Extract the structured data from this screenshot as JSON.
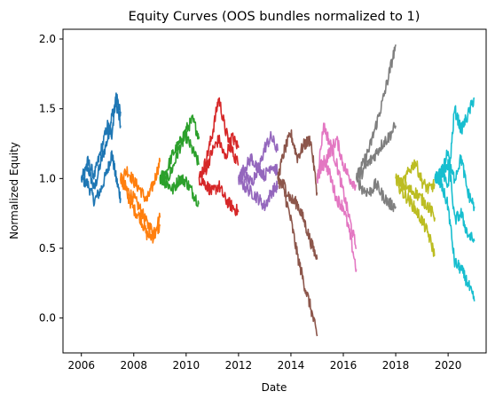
{
  "chart_data": {
    "type": "line",
    "title": "Equity Curves (OOS bundles normalized to 1)",
    "xlabel": "Date",
    "ylabel": "Normalized Equity",
    "xlim": [
      "2005-04-20",
      "2021-06-15"
    ],
    "ylim": [
      -0.25,
      2.07
    ],
    "x_ticks": [
      "2006",
      "2008",
      "2010",
      "2012",
      "2014",
      "2016",
      "2018",
      "2020"
    ],
    "y_ticks": [
      "0.0",
      "0.5",
      "1.0",
      "1.5",
      "2.0"
    ],
    "grid": false,
    "legend": "none",
    "series": [
      {
        "color": "#1f77b4",
        "curves": [
          {
            "x": [
              "2006-01-01",
              "2006-04-01",
              "2006-07-01",
              "2006-10-01",
              "2007-01-01",
              "2007-03-01",
              "2007-05-01",
              "2007-07-01"
            ],
            "y": [
              1.0,
              1.08,
              0.92,
              1.12,
              1.28,
              1.45,
              1.55,
              1.38
            ]
          },
          {
            "x": [
              "2006-01-01",
              "2006-04-01",
              "2006-07-01",
              "2006-10-01",
              "2007-01-01",
              "2007-03-01",
              "2007-05-01",
              "2007-07-01"
            ],
            "y": [
              1.0,
              0.96,
              0.84,
              0.92,
              1.06,
              1.18,
              1.0,
              0.86
            ]
          },
          {
            "x": [
              "2006-01-01",
              "2006-04-01",
              "2006-07-01",
              "2006-10-01",
              "2007-01-01",
              "2007-03-01",
              "2007-05-01",
              "2007-07-01"
            ],
            "y": [
              1.0,
              1.12,
              1.02,
              1.2,
              1.38,
              1.32,
              1.6,
              1.48
            ]
          }
        ]
      },
      {
        "color": "#ff7f0e",
        "curves": [
          {
            "x": [
              "2007-07-01",
              "2007-10-01",
              "2008-01-01",
              "2008-04-01",
              "2008-07-01",
              "2008-10-01",
              "2009-01-01"
            ],
            "y": [
              1.0,
              0.92,
              0.86,
              0.78,
              0.68,
              0.62,
              0.72
            ]
          },
          {
            "x": [
              "2007-07-01",
              "2007-10-01",
              "2008-01-01",
              "2008-04-01",
              "2008-07-01",
              "2008-10-01",
              "2009-01-01"
            ],
            "y": [
              1.0,
              1.06,
              0.98,
              0.92,
              0.84,
              0.96,
              1.12
            ]
          },
          {
            "x": [
              "2007-07-01",
              "2007-10-01",
              "2008-01-01",
              "2008-04-01",
              "2008-07-01",
              "2008-10-01",
              "2009-01-01"
            ],
            "y": [
              1.0,
              0.88,
              0.78,
              0.72,
              0.6,
              0.58,
              0.66
            ]
          }
        ]
      },
      {
        "color": "#2ca02c",
        "curves": [
          {
            "x": [
              "2009-01-01",
              "2009-04-01",
              "2009-07-01",
              "2009-10-01",
              "2010-01-01",
              "2010-04-01",
              "2010-07-01"
            ],
            "y": [
              1.0,
              0.98,
              1.08,
              1.22,
              1.3,
              1.2,
              1.1
            ]
          },
          {
            "x": [
              "2009-01-01",
              "2009-04-01",
              "2009-07-01",
              "2009-10-01",
              "2010-01-01",
              "2010-04-01",
              "2010-07-01"
            ],
            "y": [
              1.0,
              1.05,
              1.18,
              1.25,
              1.35,
              1.42,
              1.3
            ]
          },
          {
            "x": [
              "2009-01-01",
              "2009-04-01",
              "2009-07-01",
              "2009-10-01",
              "2010-01-01",
              "2010-04-01",
              "2010-07-01"
            ],
            "y": [
              1.0,
              0.97,
              0.92,
              1.0,
              0.98,
              0.9,
              0.82
            ]
          }
        ]
      },
      {
        "color": "#d62728",
        "curves": [
          {
            "x": [
              "2010-07-01",
              "2010-10-01",
              "2011-01-01",
              "2011-04-01",
              "2011-07-01",
              "2011-10-01",
              "2012-01-01"
            ],
            "y": [
              1.0,
              1.12,
              1.32,
              1.58,
              1.35,
              1.2,
              1.1
            ]
          },
          {
            "x": [
              "2010-07-01",
              "2010-10-01",
              "2011-01-01",
              "2011-04-01",
              "2011-07-01",
              "2011-10-01",
              "2012-01-01"
            ],
            "y": [
              1.0,
              0.96,
              0.9,
              0.95,
              0.85,
              0.8,
              0.76
            ]
          },
          {
            "x": [
              "2010-07-01",
              "2010-10-01",
              "2011-01-01",
              "2011-04-01",
              "2011-07-01",
              "2011-10-01",
              "2012-01-01"
            ],
            "y": [
              1.0,
              1.06,
              1.2,
              1.28,
              1.14,
              1.3,
              1.22
            ]
          }
        ]
      },
      {
        "color": "#9467bd",
        "curves": [
          {
            "x": [
              "2012-01-01",
              "2012-04-01",
              "2012-07-01",
              "2012-10-01",
              "2013-01-01",
              "2013-04-01",
              "2013-07-01"
            ],
            "y": [
              1.0,
              1.08,
              1.15,
              1.05,
              1.22,
              1.3,
              1.2
            ]
          },
          {
            "x": [
              "2012-01-01",
              "2012-04-01",
              "2012-07-01",
              "2012-10-01",
              "2013-01-01",
              "2013-04-01",
              "2013-07-01"
            ],
            "y": [
              1.0,
              0.94,
              0.9,
              0.86,
              0.8,
              0.9,
              0.95
            ]
          },
          {
            "x": [
              "2012-01-01",
              "2012-04-01",
              "2012-07-01",
              "2012-10-01",
              "2013-01-01",
              "2013-04-01",
              "2013-07-01"
            ],
            "y": [
              1.0,
              1.02,
              0.97,
              1.08,
              1.02,
              1.1,
              1.05
            ]
          }
        ]
      },
      {
        "color": "#8c564b",
        "curves": [
          {
            "x": [
              "2013-07-01",
              "2013-10-01",
              "2014-01-01",
              "2014-04-01",
              "2014-07-01",
              "2014-10-01",
              "2015-01-01"
            ],
            "y": [
              1.0,
              1.2,
              1.32,
              1.15,
              1.24,
              1.28,
              0.9
            ]
          },
          {
            "x": [
              "2013-07-01",
              "2013-10-01",
              "2014-01-01",
              "2014-04-01",
              "2014-07-01",
              "2014-10-01",
              "2015-01-01"
            ],
            "y": [
              1.0,
              0.9,
              0.7,
              0.45,
              0.25,
              0.08,
              -0.13
            ]
          },
          {
            "x": [
              "2013-07-01",
              "2013-10-01",
              "2014-01-01",
              "2014-04-01",
              "2014-07-01",
              "2014-10-01",
              "2015-01-01"
            ],
            "y": [
              1.0,
              0.95,
              0.85,
              0.82,
              0.7,
              0.55,
              0.42
            ]
          }
        ]
      },
      {
        "color": "#e377c2",
        "curves": [
          {
            "x": [
              "2015-01-01",
              "2015-04-01",
              "2015-07-01",
              "2015-10-01",
              "2016-01-01",
              "2016-04-01",
              "2016-07-01"
            ],
            "y": [
              1.0,
              1.38,
              1.25,
              1.1,
              0.9,
              0.7,
              0.5
            ]
          },
          {
            "x": [
              "2015-01-01",
              "2015-04-01",
              "2015-07-01",
              "2015-10-01",
              "2016-01-01",
              "2016-04-01",
              "2016-07-01"
            ],
            "y": [
              1.0,
              1.15,
              1.02,
              0.85,
              0.8,
              0.6,
              0.35
            ]
          },
          {
            "x": [
              "2015-01-01",
              "2015-04-01",
              "2015-07-01",
              "2015-10-01",
              "2016-01-01",
              "2016-04-01",
              "2016-07-01"
            ],
            "y": [
              1.0,
              1.1,
              1.2,
              1.28,
              1.1,
              1.0,
              0.95
            ]
          }
        ]
      },
      {
        "color": "#7f7f7f",
        "curves": [
          {
            "x": [
              "2016-07-01",
              "2016-10-01",
              "2017-01-01",
              "2017-04-01",
              "2017-07-01",
              "2017-10-01",
              "2018-01-01"
            ],
            "y": [
              1.0,
              1.1,
              1.22,
              1.38,
              1.55,
              1.75,
              1.96
            ]
          },
          {
            "x": [
              "2016-07-01",
              "2016-10-01",
              "2017-01-01",
              "2017-04-01",
              "2017-07-01",
              "2017-10-01",
              "2018-01-01"
            ],
            "y": [
              1.0,
              0.92,
              0.9,
              0.96,
              0.88,
              0.82,
              0.8
            ]
          },
          {
            "x": [
              "2016-07-01",
              "2016-10-01",
              "2017-01-01",
              "2017-04-01",
              "2017-07-01",
              "2017-10-01",
              "2018-01-01"
            ],
            "y": [
              1.0,
              1.05,
              1.12,
              1.18,
              1.25,
              1.3,
              1.38
            ]
          }
        ]
      },
      {
        "color": "#bcbd22",
        "curves": [
          {
            "x": [
              "2018-01-01",
              "2018-04-01",
              "2018-07-01",
              "2018-10-01",
              "2019-01-01",
              "2019-04-01",
              "2019-07-01"
            ],
            "y": [
              1.0,
              0.95,
              1.05,
              1.12,
              0.98,
              0.92,
              0.96
            ]
          },
          {
            "x": [
              "2018-01-01",
              "2018-04-01",
              "2018-07-01",
              "2018-10-01",
              "2019-01-01",
              "2019-04-01",
              "2019-07-01"
            ],
            "y": [
              1.0,
              0.9,
              0.85,
              0.78,
              0.7,
              0.6,
              0.45
            ]
          },
          {
            "x": [
              "2018-01-01",
              "2018-04-01",
              "2018-07-01",
              "2018-10-01",
              "2019-01-01",
              "2019-04-01",
              "2019-07-01"
            ],
            "y": [
              1.0,
              0.96,
              0.92,
              0.9,
              0.85,
              0.8,
              0.72
            ]
          }
        ]
      },
      {
        "color": "#17becf",
        "curves": [
          {
            "x": [
              "2019-07-01",
              "2019-10-01",
              "2020-01-01",
              "2020-04-01",
              "2020-07-01",
              "2020-10-01",
              "2021-01-01"
            ],
            "y": [
              1.0,
              1.02,
              0.95,
              1.5,
              1.35,
              1.45,
              1.58
            ]
          },
          {
            "x": [
              "2019-07-01",
              "2019-10-01",
              "2020-01-01",
              "2020-04-01",
              "2020-07-01",
              "2020-10-01",
              "2021-01-01"
            ],
            "y": [
              1.0,
              0.95,
              0.8,
              0.4,
              0.35,
              0.25,
              0.12
            ]
          },
          {
            "x": [
              "2019-07-01",
              "2019-10-01",
              "2020-01-01",
              "2020-04-01",
              "2020-07-01",
              "2020-10-01",
              "2021-01-01"
            ],
            "y": [
              1.0,
              1.05,
              1.1,
              1.0,
              1.15,
              0.9,
              0.8
            ]
          },
          {
            "x": [
              "2019-07-01",
              "2019-10-01",
              "2020-01-01",
              "2020-04-01",
              "2020-07-01",
              "2020-10-01",
              "2021-01-01"
            ],
            "y": [
              1.0,
              1.02,
              1.2,
              0.7,
              0.75,
              0.6,
              0.55
            ]
          }
        ]
      }
    ]
  }
}
